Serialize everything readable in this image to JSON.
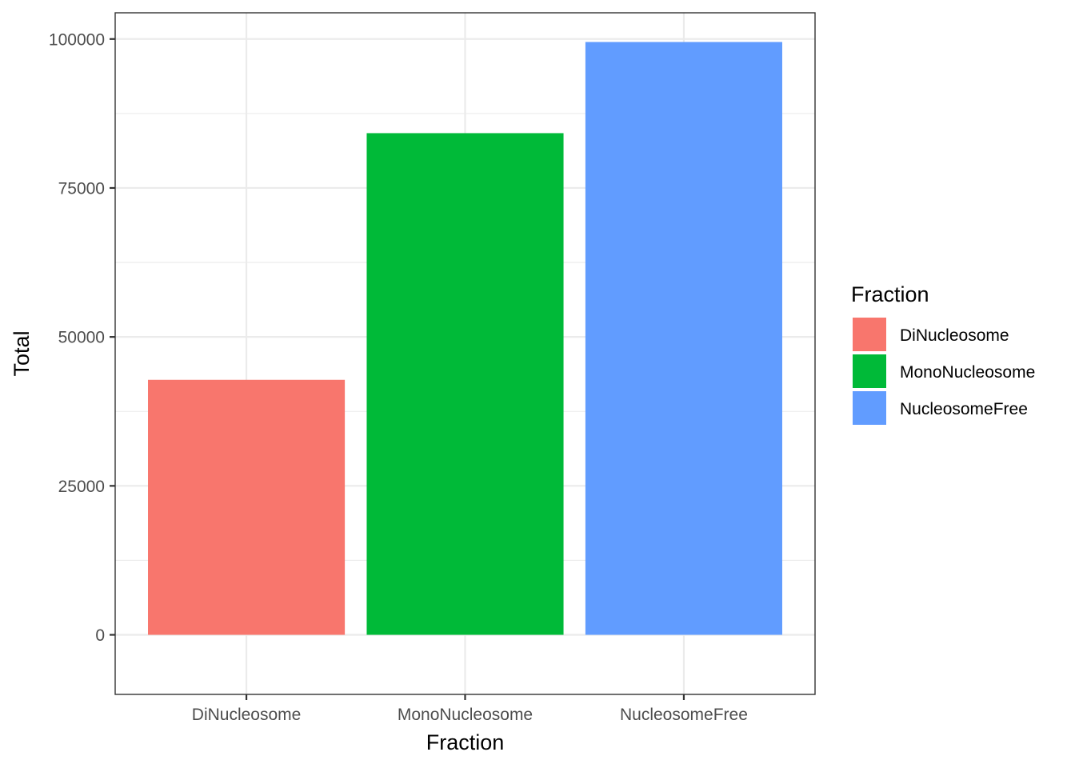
{
  "chart_data": {
    "type": "bar",
    "categories": [
      "DiNucleosome",
      "MonoNucleosome",
      "NucleosomeFree"
    ],
    "values": [
      42800,
      84200,
      99500
    ],
    "colors": [
      "#F8766D",
      "#00BA38",
      "#619CFF"
    ],
    "xlabel": "Fraction",
    "ylabel": "Total",
    "ylim": [
      -10000,
      104400
    ],
    "yticks": [
      0,
      25000,
      50000,
      75000,
      100000
    ],
    "ytick_labels": [
      "0",
      "25000",
      "50000",
      "75000",
      "100000"
    ],
    "grid": true,
    "legend": {
      "title": "Fraction",
      "position": "right",
      "entries": [
        "DiNucleosome",
        "MonoNucleosome",
        "NucleosomeFree"
      ]
    }
  }
}
